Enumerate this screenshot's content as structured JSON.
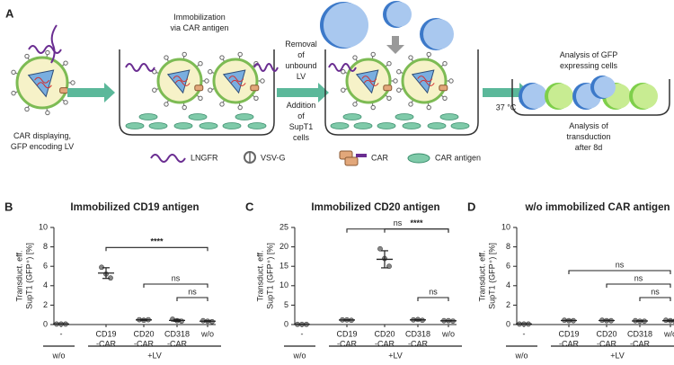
{
  "schematic": {
    "label": "A",
    "lv_caption": [
      "CAR displaying,",
      "GFP encoding LV"
    ],
    "step1": [
      "Immobilization",
      "via CAR antigen"
    ],
    "step2": [
      "Removal",
      "of",
      "unbound",
      "LV"
    ],
    "step3": [
      "Addition",
      "of",
      "SupT1",
      "cells"
    ],
    "temperature": "37 °C",
    "readout_top": [
      "Analysis of GFP",
      "expressing cells"
    ],
    "readout_bottom": [
      "Analysis of",
      "transduction",
      "after 8d"
    ],
    "legend": [
      "LNGFR",
      "VSV-G",
      "CAR",
      "CAR antigen"
    ]
  },
  "chart_data": [
    {
      "type": "dot",
      "panel": "B",
      "title": "Immobilized CD19 antigen",
      "ylabel": [
        "Transduct. eff.",
        "SupT1 (GFP⁺) [%]"
      ],
      "categories": [
        [
          "-"
        ],
        [
          "CD19",
          "-CAR"
        ],
        [
          "CD20",
          "-CAR"
        ],
        [
          "CD318",
          "-CAR"
        ],
        [
          "w/o"
        ]
      ],
      "groups": [
        {
          "label": "w/o",
          "span": [
            0,
            0
          ]
        },
        {
          "label": "+LV",
          "span": [
            1,
            4
          ]
        }
      ],
      "points": [
        [
          0.05,
          0.05,
          0.05
        ],
        [
          5.9,
          5.2,
          4.8
        ],
        [
          0.5,
          0.45,
          0.5
        ],
        [
          0.55,
          0.4,
          0.35
        ],
        [
          0.4,
          0.35,
          0.3
        ]
      ],
      "mean": [
        0.05,
        5.3,
        0.48,
        0.43,
        0.35
      ],
      "sd": [
        0,
        0.55,
        0.05,
        0.1,
        0.05
      ],
      "comparisons": [
        {
          "between": [
            1,
            4
          ],
          "label": "****"
        },
        {
          "between": [
            2,
            4
          ],
          "label": "ns"
        },
        {
          "between": [
            3,
            4
          ],
          "label": "ns"
        }
      ],
      "ylim": [
        0,
        10
      ],
      "yticks": [
        0,
        2,
        4,
        6,
        8,
        10
      ],
      "color": "#888888"
    },
    {
      "type": "dot",
      "panel": "C",
      "title": "Immobilized CD20 antigen",
      "ylabel": [
        "Transduct. eff.",
        "SupT1 (GFP⁺) [%]"
      ],
      "categories": [
        [
          "-"
        ],
        [
          "CD19",
          "-CAR"
        ],
        [
          "CD20",
          "-CAR"
        ],
        [
          "CD318",
          "-CAR"
        ],
        [
          "w/o"
        ]
      ],
      "groups": [
        {
          "label": "w/o",
          "span": [
            0,
            0
          ]
        },
        {
          "label": "+LV",
          "span": [
            1,
            4
          ]
        }
      ],
      "points": [
        [
          0.05,
          0.05,
          0.05
        ],
        [
          1.2,
          1.2,
          1.1
        ],
        [
          19.5,
          17,
          15
        ],
        [
          1.2,
          1.3,
          1.1
        ],
        [
          1.0,
          1.0,
          0.9
        ]
      ],
      "mean": [
        0.05,
        1.17,
        16.8,
        1.2,
        0.97
      ],
      "sd": [
        0,
        0.05,
        2.2,
        0.1,
        0.05
      ],
      "comparisons": [
        {
          "between": [
            2,
            4
          ],
          "label": "****"
        },
        {
          "between": [
            1,
            4
          ],
          "label": "ns"
        },
        {
          "between": [
            3,
            4
          ],
          "label": "ns"
        }
      ],
      "ylim": [
        0,
        25
      ],
      "yticks": [
        0,
        5,
        10,
        15,
        20,
        25
      ],
      "color": "#888888"
    },
    {
      "type": "dot",
      "panel": "D",
      "title": "w/o immobilized CAR antigen",
      "ylabel": [
        "Transduct. eff.",
        "SupT1 (GFP⁺) [%]"
      ],
      "categories": [
        [
          "-"
        ],
        [
          "CD19",
          "-CAR"
        ],
        [
          "CD20",
          "-CAR"
        ],
        [
          "CD318",
          "-CAR"
        ],
        [
          "w/o"
        ]
      ],
      "groups": [
        {
          "label": "w/o",
          "span": [
            0,
            0
          ]
        },
        {
          "label": "+LV",
          "span": [
            1,
            4
          ]
        }
      ],
      "points": [
        [
          0.05,
          0.05,
          0.05
        ],
        [
          0.45,
          0.4,
          0.4
        ],
        [
          0.45,
          0.4,
          0.4
        ],
        [
          0.4,
          0.35,
          0.35
        ],
        [
          0.45,
          0.4,
          0.35
        ]
      ],
      "mean": [
        0.05,
        0.42,
        0.42,
        0.37,
        0.4
      ],
      "sd": [
        0,
        0.03,
        0.03,
        0.03,
        0.05
      ],
      "comparisons": [
        {
          "between": [
            1,
            4
          ],
          "label": "ns"
        },
        {
          "between": [
            2,
            4
          ],
          "label": "ns"
        },
        {
          "between": [
            3,
            4
          ],
          "label": "ns"
        }
      ],
      "ylim": [
        0,
        10
      ],
      "yticks": [
        0,
        2,
        4,
        6,
        8,
        10
      ],
      "color": "#888888"
    }
  ]
}
